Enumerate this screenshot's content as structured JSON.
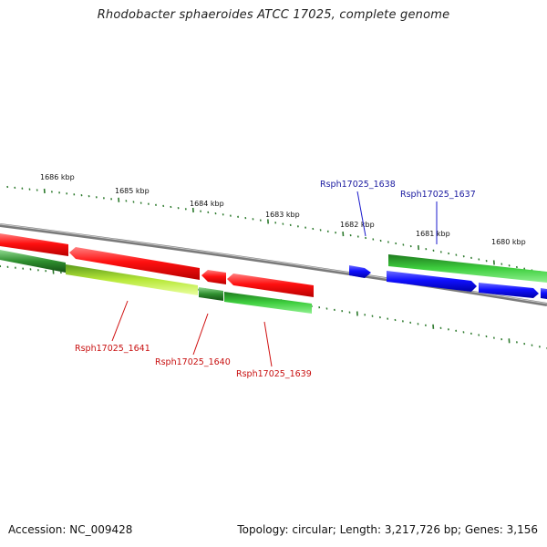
{
  "title": "Rhodobacter sphaeroides ATCC 17025, complete genome",
  "footer": {
    "accession": "Accession: NC_009428",
    "topology": "Topology: circular; Length: 3,217,726 bp; Genes: 3,156"
  },
  "colors": {
    "backbone": "#7a7a7a",
    "tick": "#2d7a2d",
    "forward_gene": "#1a1aff",
    "reverse_gene": "#ff1a1a",
    "forward_feature": "#44bb44",
    "reverse_feature": "#2f8f2f",
    "reverse_feature_light": "#b8e83a"
  },
  "scale_labels": [
    "1686 kbp",
    "1685 kbp",
    "1684 kbp",
    "1683 kbp",
    "1682 kbp",
    "1681 kbp",
    "1680 kbp"
  ],
  "gene_labels": {
    "top": [
      "Rsph17025_1638",
      "Rsph17025_1637"
    ],
    "bottom": [
      "Rsph17025_1641",
      "Rsph17025_1640",
      "Rsph17025_1639"
    ]
  }
}
